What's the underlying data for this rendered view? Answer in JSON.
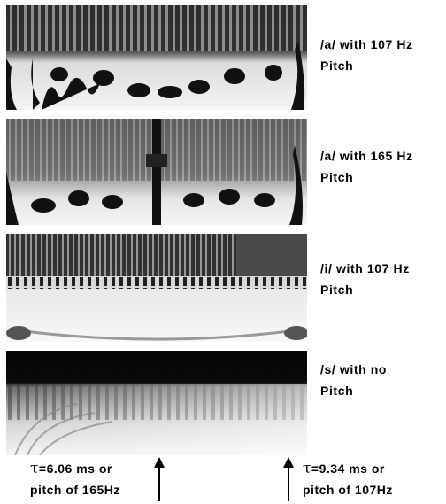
{
  "figure": {
    "panels": [
      {
        "id": "a-107",
        "caption_line1": "/a/ with 107 Hz",
        "caption_line2": "Pitch"
      },
      {
        "id": "a-165",
        "caption_line1": "/a/ with 165 Hz",
        "caption_line2": "Pitch"
      },
      {
        "id": "i-107",
        "caption_line1": "/i/ with 107 Hz",
        "caption_line2": "Pitch"
      },
      {
        "id": "s-none",
        "caption_line1": "/s/ with no",
        "caption_line2": "Pitch"
      }
    ],
    "annotations": {
      "left": {
        "symbol": "τ",
        "line1": "=6.06 ms or",
        "line2": "pitch of 165Hz"
      },
      "right": {
        "symbol": "τ",
        "line1": "=9.34 ms or",
        "line2": "pitch of 107Hz"
      }
    }
  }
}
